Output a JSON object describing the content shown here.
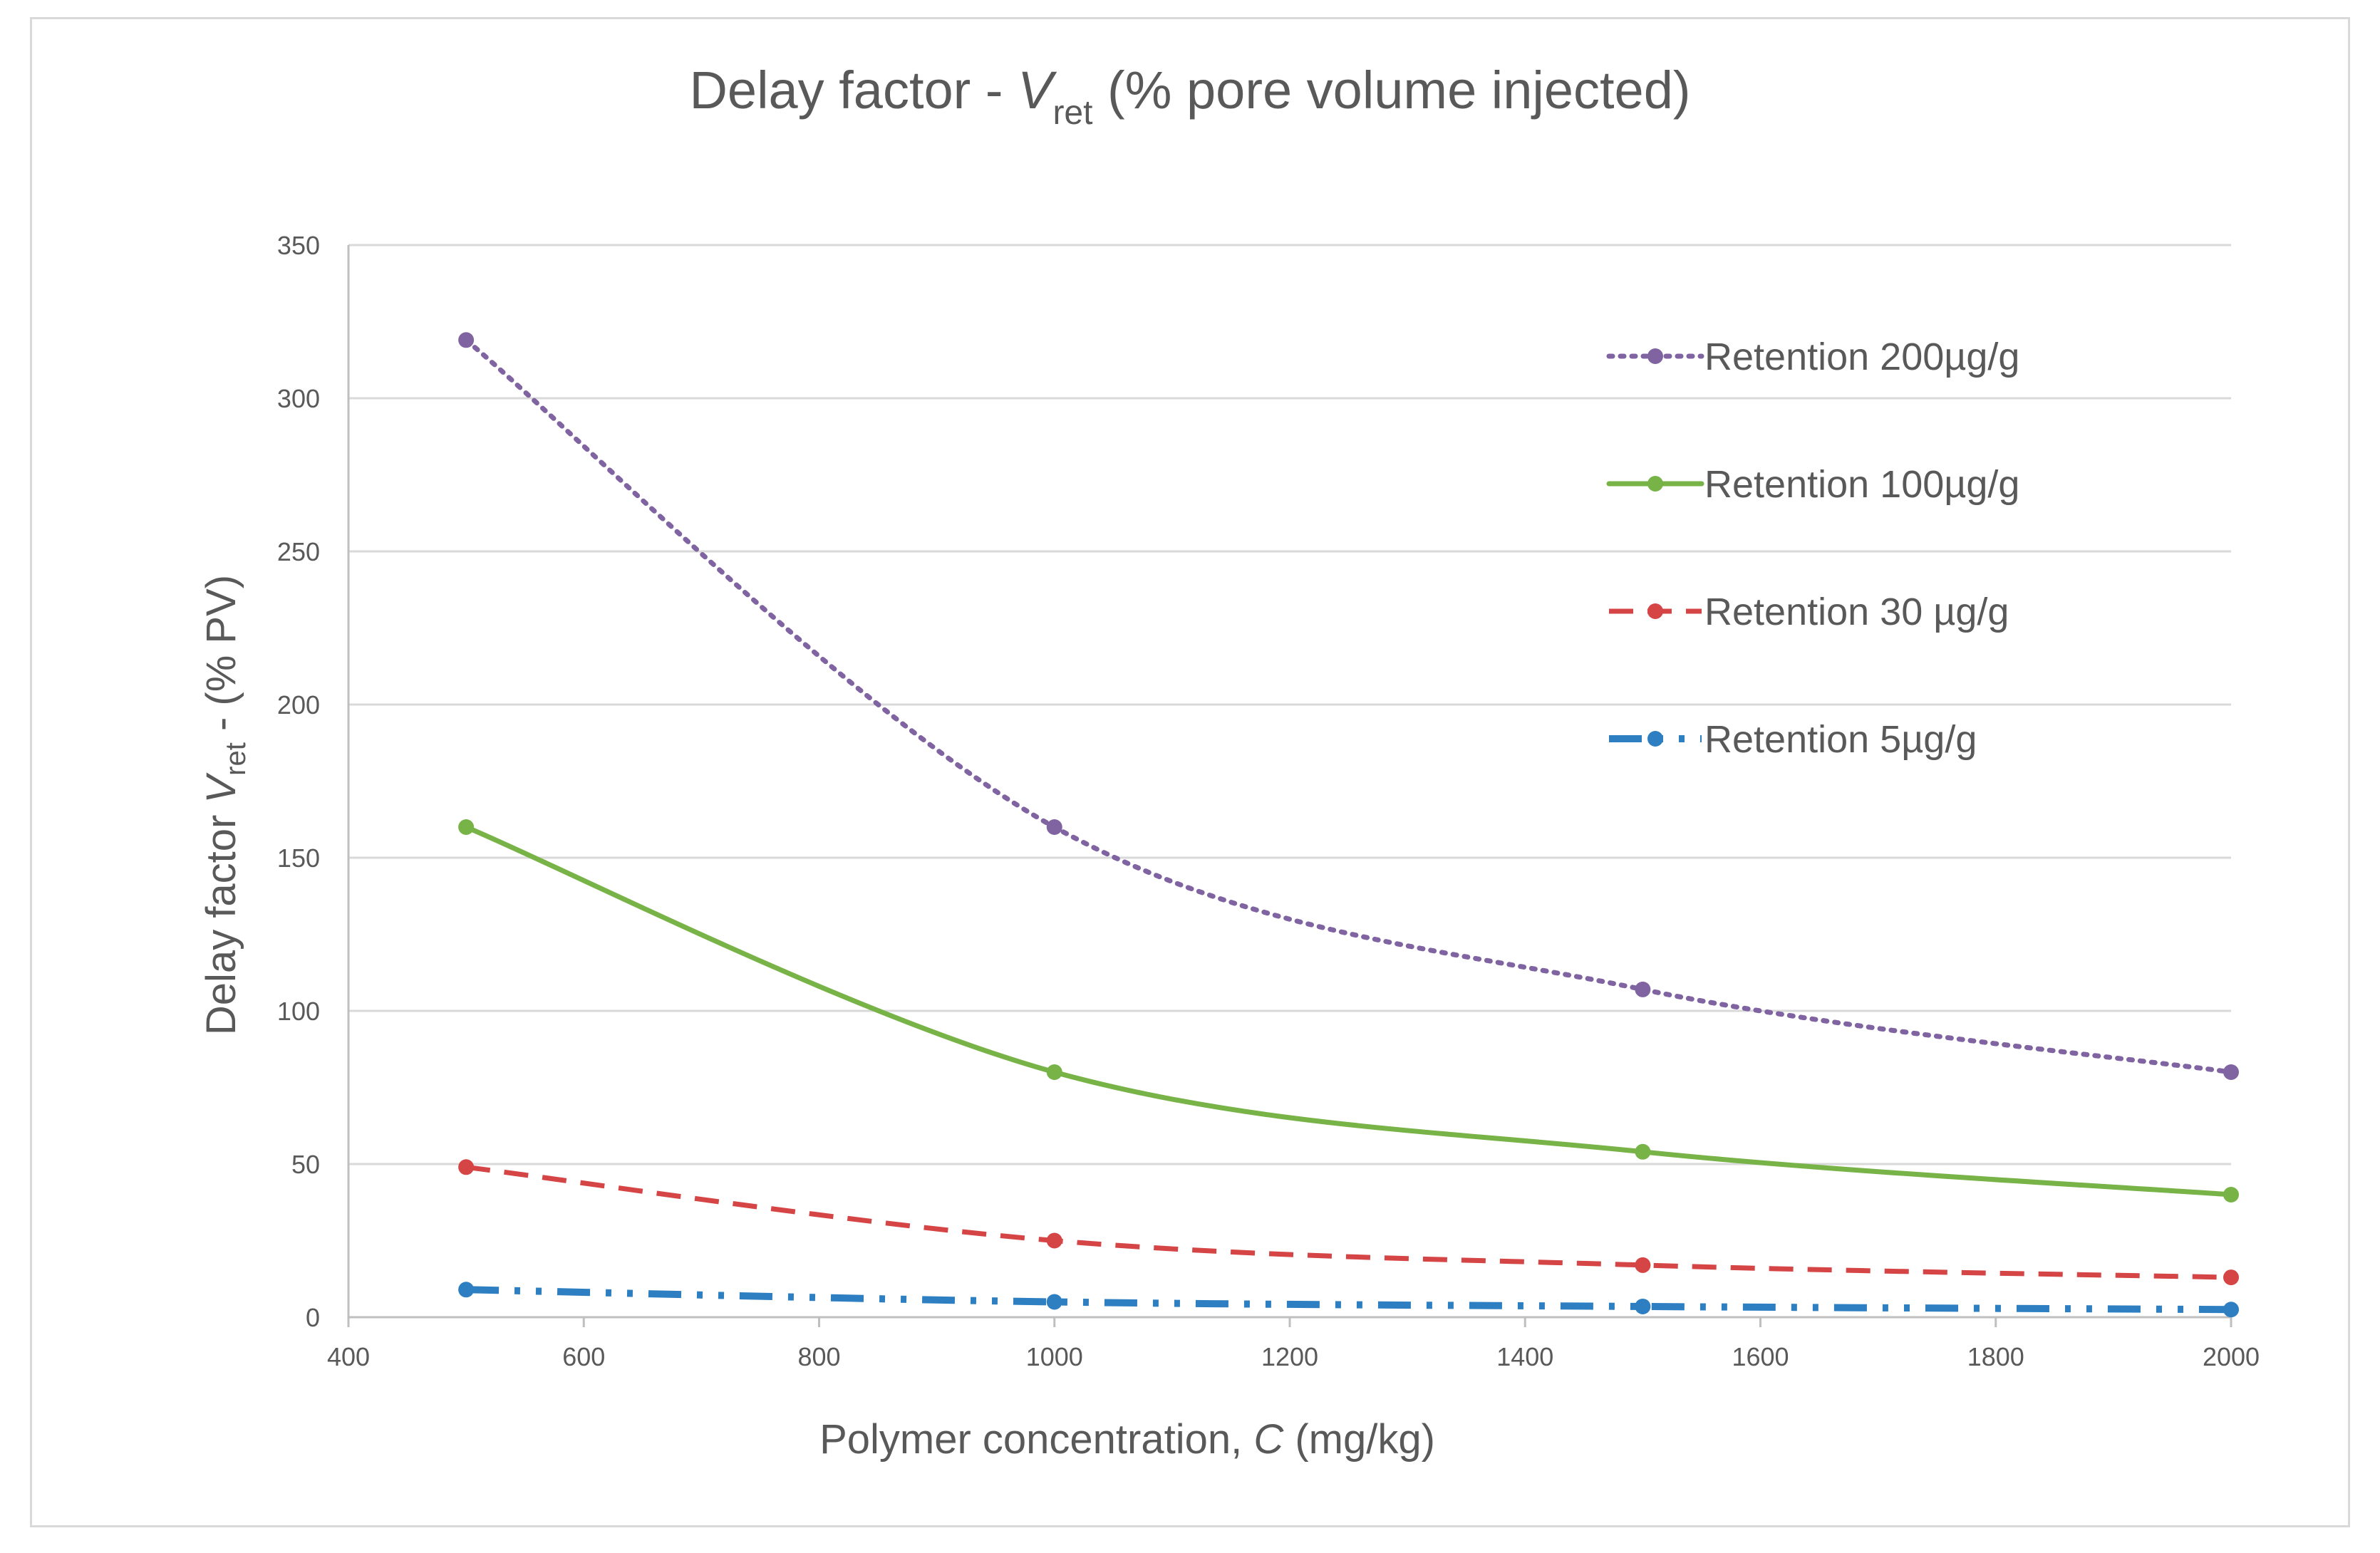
{
  "chart_data": {
    "type": "line",
    "title": {
      "prefix": "Delay factor  - ",
      "var": "V",
      "sub": "ret",
      "suffix": " (% pore volume injected)"
    },
    "xlabel": {
      "prefix": "Polymer concentration, ",
      "var": "C",
      "suffix": " (mg/kg)"
    },
    "ylabel": {
      "prefix": "Delay factor ",
      "var": "V",
      "sub": "ret",
      "suffix": " - (% PV)"
    },
    "xlim": [
      400,
      2000
    ],
    "ylim": [
      0,
      350
    ],
    "x_ticks": [
      400,
      600,
      800,
      1000,
      1200,
      1400,
      1600,
      1800,
      2000
    ],
    "y_ticks": [
      0,
      50,
      100,
      150,
      200,
      250,
      300,
      350
    ],
    "grid": "horizontal",
    "legend_position": "top-right",
    "x": [
      500,
      1000,
      1500,
      2000
    ],
    "series": [
      {
        "name": "Retention 200µg/g",
        "values": [
          319,
          160,
          107,
          80
        ],
        "color": "#8064a2",
        "style": "dotted"
      },
      {
        "name": "Retention 100µg/g",
        "values": [
          160,
          80,
          54,
          40
        ],
        "color": "#77b346",
        "style": "solid"
      },
      {
        "name": "Retention 30 µg/g",
        "values": [
          49,
          25,
          17,
          13
        ],
        "color": "#d64545",
        "style": "dashed"
      },
      {
        "name": "Retention 5µg/g",
        "values": [
          9,
          5,
          3.5,
          2.5
        ],
        "color": "#2e7fc1",
        "style": "dash-dot-dot"
      }
    ]
  }
}
